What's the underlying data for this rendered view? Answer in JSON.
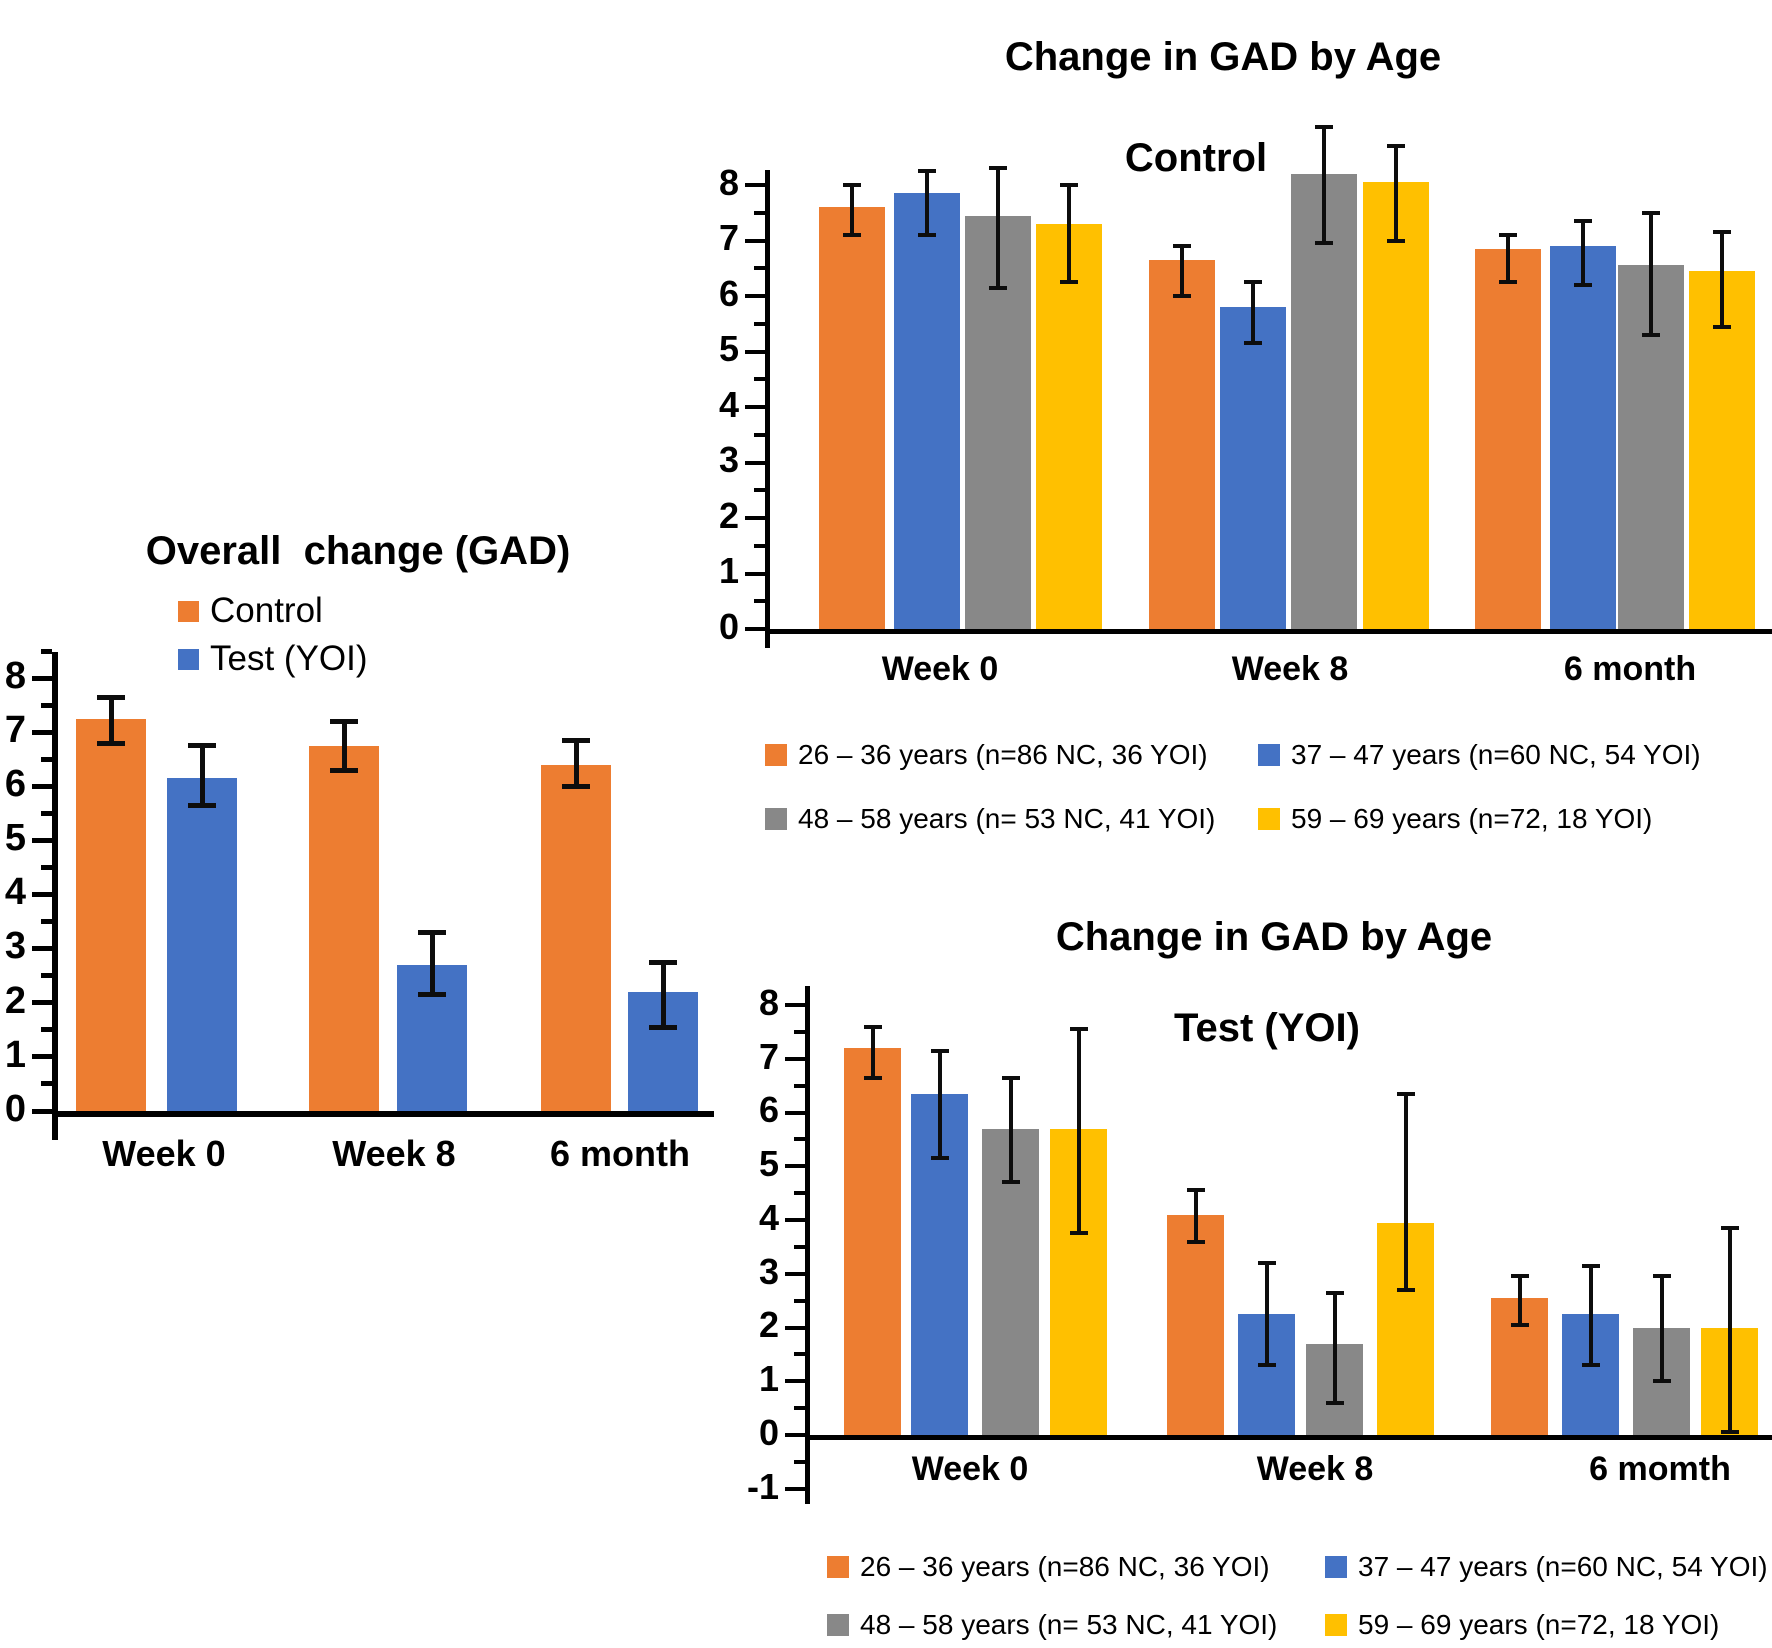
{
  "figure": {
    "background": "#ffffff"
  },
  "colors": {
    "orange": "#ED7D31",
    "blue": "#4472C4",
    "gray": "#888888",
    "yellow": "#FFC000",
    "axis": "#000000",
    "error": "#0d0d0d"
  },
  "chart_data": [
    {
      "id": "overall",
      "type": "bar",
      "title": "Overall  change (GAD)",
      "subtitle": "",
      "categories": [
        "Week 0",
        "Week 8",
        "6 month"
      ],
      "ytick_labels": [
        "8",
        "7",
        "6",
        "5",
        "4",
        "3",
        "2",
        "1",
        "0"
      ],
      "yticks": [
        8,
        7,
        6,
        5,
        4,
        3,
        2,
        1,
        0
      ],
      "ylim": [
        0,
        8
      ],
      "grid": false,
      "legend_position": "top-left-vertical",
      "error_bars": true,
      "series": [
        {
          "name": "Control",
          "color_key": "orange",
          "values": [
            7.25,
            6.75,
            6.4
          ],
          "err_lo": [
            6.8,
            6.3,
            6.0
          ],
          "err_hi": [
            7.65,
            7.2,
            6.85
          ]
        },
        {
          "name": "Test (YOI)",
          "color_key": "blue",
          "values": [
            6.15,
            2.7,
            2.2
          ],
          "err_lo": [
            5.65,
            2.15,
            1.55
          ],
          "err_hi": [
            6.75,
            3.3,
            2.75
          ]
        }
      ]
    },
    {
      "id": "control",
      "type": "bar",
      "title": "Change in GAD by Age",
      "subtitle": "Control",
      "categories": [
        "Week 0",
        "Week 8",
        "6 month"
      ],
      "ytick_labels": [
        "8",
        "7",
        "6",
        "5",
        "4",
        "3",
        "2",
        "1",
        "0"
      ],
      "yticks": [
        8,
        7,
        6,
        5,
        4,
        3,
        2,
        1,
        0
      ],
      "ylim": [
        0,
        8
      ],
      "grid": false,
      "legend_position": "bottom-two-columns",
      "error_bars": true,
      "series": [
        {
          "name": "26 – 36 years (n=86 NC, 36 YOI)",
          "color_key": "orange",
          "values": [
            7.6,
            6.65,
            6.85
          ],
          "err_lo": [
            7.1,
            6.0,
            6.25
          ],
          "err_hi": [
            8.0,
            6.9,
            7.1
          ]
        },
        {
          "name": "37 – 47 years (n=60 NC, 54 YOI)",
          "color_key": "blue",
          "values": [
            7.85,
            5.8,
            6.9
          ],
          "err_lo": [
            7.1,
            5.15,
            6.2
          ],
          "err_hi": [
            8.25,
            6.25,
            7.35
          ]
        },
        {
          "name": "48 – 58 years (n= 53 NC, 41 YOI)",
          "color_key": "gray",
          "values": [
            7.45,
            8.2,
            6.55
          ],
          "err_lo": [
            6.15,
            6.95,
            5.3
          ],
          "err_hi": [
            8.3,
            9.05,
            7.5
          ]
        },
        {
          "name": "59 – 69 years (n=72, 18 YOI)",
          "color_key": "yellow",
          "values": [
            7.3,
            8.05,
            6.45
          ],
          "err_lo": [
            6.25,
            7.0,
            5.45
          ],
          "err_hi": [
            8.0,
            8.7,
            7.15
          ]
        }
      ]
    },
    {
      "id": "test",
      "type": "bar",
      "title": "Change in GAD by Age",
      "subtitle": "Test (YOI)",
      "categories": [
        "Week 0",
        "Week 8",
        "6 momth"
      ],
      "ytick_labels": [
        "8",
        "7",
        "6",
        "5",
        "4",
        "3",
        "2",
        "1",
        "0",
        "-1"
      ],
      "yticks": [
        8,
        7,
        6,
        5,
        4,
        3,
        2,
        1,
        0,
        -1
      ],
      "ylim": [
        -1,
        8
      ],
      "grid": false,
      "legend_position": "bottom-two-columns",
      "error_bars": true,
      "series": [
        {
          "name": "26 – 36 years (n=86 NC, 36 YOI)",
          "color_key": "orange",
          "values": [
            7.2,
            4.1,
            2.55
          ],
          "err_lo": [
            6.65,
            3.6,
            2.05
          ],
          "err_hi": [
            7.6,
            4.55,
            2.95
          ]
        },
        {
          "name": "37 – 47 years (n=60 NC, 54 YOI)",
          "color_key": "blue",
          "values": [
            6.35,
            2.25,
            2.25
          ],
          "err_lo": [
            5.15,
            1.3,
            1.3
          ],
          "err_hi": [
            7.15,
            3.2,
            3.15
          ]
        },
        {
          "name": "48 – 58 years (n= 53 NC, 41 YOI)",
          "color_key": "gray",
          "values": [
            5.7,
            1.7,
            2.0
          ],
          "err_lo": [
            4.7,
            0.6,
            1.0
          ],
          "err_hi": [
            6.65,
            2.65,
            2.95
          ]
        },
        {
          "name": "59 – 69 years (n=72, 18 YOI)",
          "color_key": "yellow",
          "values": [
            5.7,
            3.95,
            2.0
          ],
          "err_lo": [
            3.75,
            2.7,
            0.05
          ],
          "err_hi": [
            7.55,
            6.35,
            3.85
          ]
        }
      ]
    }
  ]
}
